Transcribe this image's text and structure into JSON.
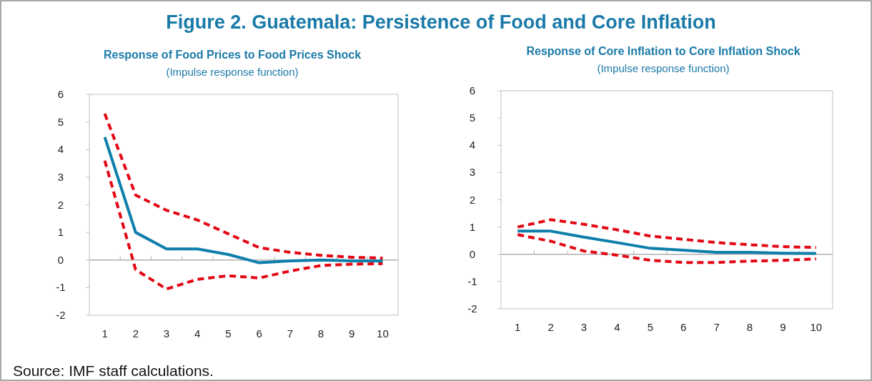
{
  "chart_data": [
    {
      "type": "line",
      "title": "Response of Food Prices to Food Prices Shock",
      "subtitle": "(Impulse response function)",
      "annotations": [
        "Figure 2. Guatemala: Persistence of Food and Core Inflation",
        "Source: IMF staff calculations."
      ],
      "categories": [
        "1",
        "2",
        "3",
        "4",
        "5",
        "6",
        "7",
        "8",
        "9",
        "10"
      ],
      "ylim": [
        -2,
        6
      ],
      "yticks": [
        -2,
        -1,
        0,
        1,
        2,
        3,
        4,
        5,
        6
      ],
      "series": [
        {
          "color": "#e30613",
          "line_style": "dashed",
          "values": [
            5.3,
            2.35,
            1.8,
            1.45,
            0.95,
            0.45,
            0.28,
            0.17,
            0.1,
            0.07
          ]
        },
        {
          "color": "#e30613",
          "line_style": "dashed",
          "values": [
            3.6,
            -0.35,
            -1.05,
            -0.7,
            -0.57,
            -0.65,
            -0.4,
            -0.2,
            -0.15,
            -0.13
          ]
        },
        {
          "color": "#0e7fab",
          "line_style": "solid",
          "values": [
            4.45,
            1.0,
            0.4,
            0.4,
            0.2,
            -0.1,
            -0.03,
            0,
            -0.03,
            -0.03
          ]
        }
      ]
    },
    {
      "type": "line",
      "title": "Response of Core Inflation to Core Inflation Shock",
      "subtitle": "(Impulse response function)",
      "categories": [
        "1",
        "2",
        "3",
        "4",
        "5",
        "6",
        "7",
        "8",
        "9",
        "10"
      ],
      "ylim": [
        -2,
        6
      ],
      "yticks": [
        -2,
        -1,
        0,
        1,
        2,
        3,
        4,
        5,
        6
      ],
      "series": [
        {
          "color": "#e30613",
          "line_style": "dashed",
          "values": [
            1.0,
            1.27,
            1.1,
            0.9,
            0.67,
            0.55,
            0.43,
            0.35,
            0.28,
            0.25
          ]
        },
        {
          "color": "#e30613",
          "line_style": "dashed",
          "values": [
            0.72,
            0.48,
            0.12,
            -0.03,
            -0.22,
            -0.3,
            -0.3,
            -0.25,
            -0.22,
            -0.17
          ]
        },
        {
          "color": "#0e7fab",
          "line_style": "solid",
          "values": [
            0.85,
            0.85,
            0.63,
            0.43,
            0.22,
            0.15,
            0.07,
            0.07,
            0.04,
            0.03
          ]
        }
      ]
    }
  ]
}
